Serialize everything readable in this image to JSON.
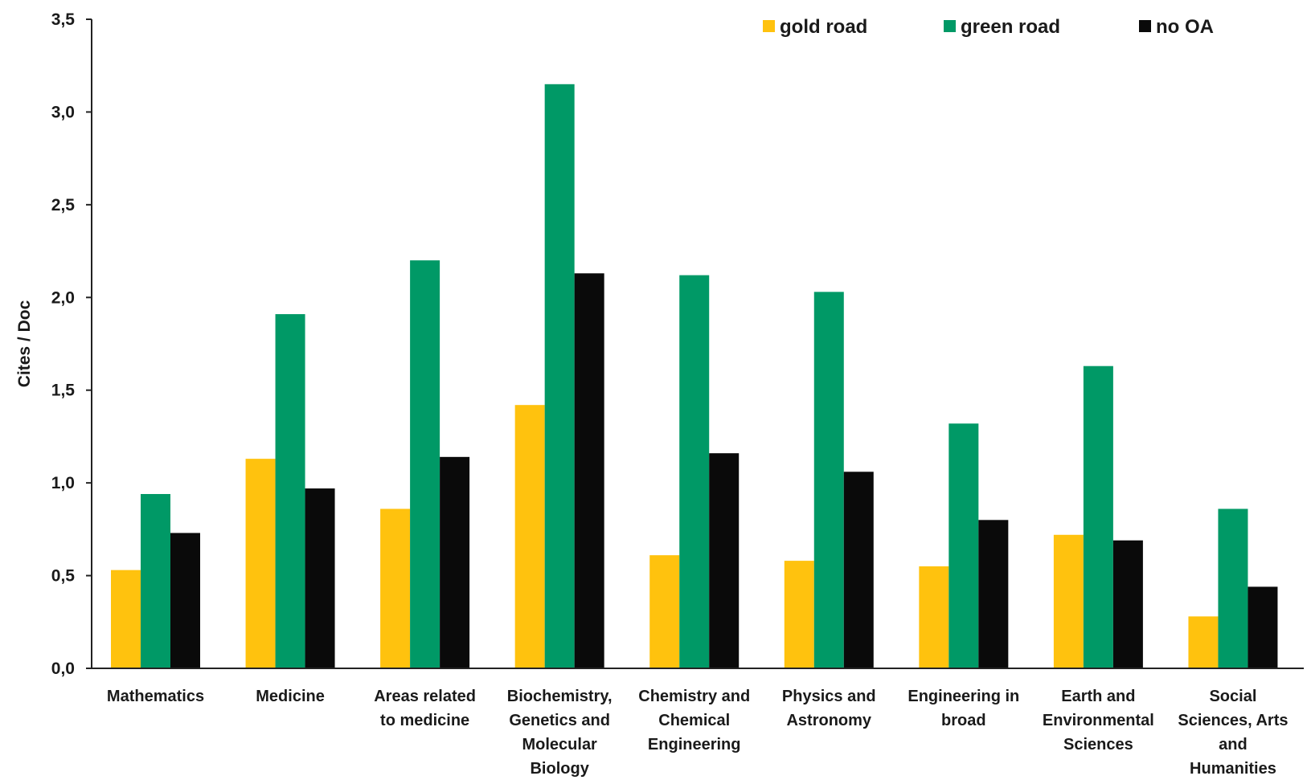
{
  "chart_data": {
    "type": "bar",
    "title": "",
    "xlabel": "",
    "ylabel": "Cites / Doc",
    "ylim": [
      0,
      3.5
    ],
    "yticks": [
      "0,0",
      "0,5",
      "1,0",
      "1,5",
      "2,0",
      "2,5",
      "3,0",
      "3,5"
    ],
    "grid": false,
    "legend_position": "top-right",
    "categories": [
      [
        "Mathematics"
      ],
      [
        "Medicine"
      ],
      [
        "Areas related",
        "to medicine"
      ],
      [
        "Biochemistry,",
        "Genetics and",
        "Molecular",
        "Biology"
      ],
      [
        "Chemistry and",
        "Chemical",
        "Engineering"
      ],
      [
        "Physics and",
        "Astronomy"
      ],
      [
        "Engineering in",
        "broad"
      ],
      [
        "Earth and",
        "Environmental",
        "Sciences"
      ],
      [
        "Social",
        "Sciences, Arts",
        "and",
        "Humanities"
      ]
    ],
    "series": [
      {
        "name": "gold road",
        "color": "#FFC20E",
        "values": [
          0.53,
          1.13,
          0.86,
          1.42,
          0.61,
          0.58,
          0.55,
          0.72,
          0.28
        ]
      },
      {
        "name": "green road",
        "color": "#009966",
        "values": [
          0.94,
          1.91,
          2.2,
          3.15,
          2.12,
          2.03,
          1.32,
          1.63,
          0.86
        ]
      },
      {
        "name": "no OA",
        "color": "#0a0a0a",
        "values": [
          0.73,
          0.97,
          1.14,
          2.13,
          1.16,
          1.06,
          0.8,
          0.69,
          0.44
        ]
      }
    ]
  }
}
